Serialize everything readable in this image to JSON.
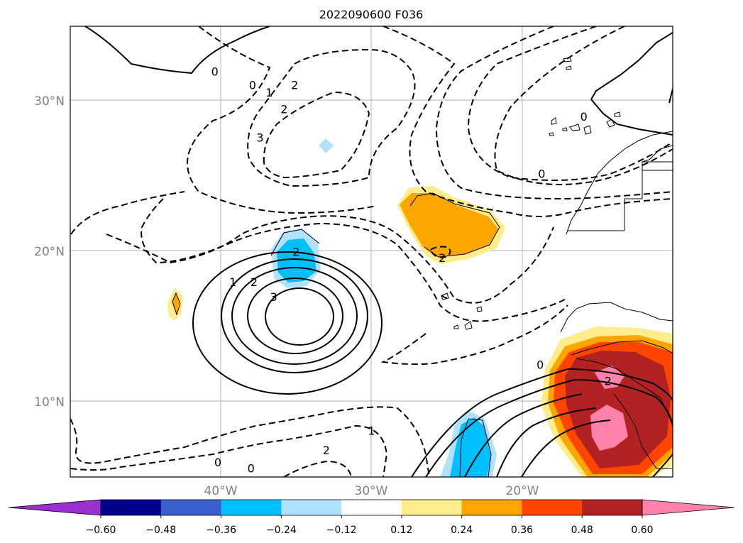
{
  "title": "2022090600 F036",
  "map": {
    "lat_range": [
      5,
      35
    ],
    "lon_range": [
      -50,
      -10
    ],
    "gridlines": true,
    "lat_ticks": [
      {
        "value": 30,
        "label": "30°N"
      },
      {
        "value": 20,
        "label": "20°N"
      },
      {
        "value": 10,
        "label": "10°N"
      }
    ],
    "lon_ticks": [
      {
        "value": -40,
        "label": "40°W"
      },
      {
        "value": -30,
        "label": "30°W"
      },
      {
        "value": -20,
        "label": "20°W"
      }
    ],
    "contour_labels": [
      {
        "text": "0",
        "lon": -40.4,
        "lat": 32.0
      },
      {
        "text": "0",
        "lon": -37.9,
        "lat": 31.1
      },
      {
        "text": "1",
        "lon": -36.8,
        "lat": 30.6
      },
      {
        "text": "2",
        "lon": -35.1,
        "lat": 31.1
      },
      {
        "text": "2",
        "lon": -35.8,
        "lat": 29.5
      },
      {
        "text": "3",
        "lon": -37.4,
        "lat": 27.6
      },
      {
        "text": "0",
        "lon": -18.7,
        "lat": 25.2
      },
      {
        "text": "0",
        "lon": -15.9,
        "lat": 29.0
      },
      {
        "text": "2",
        "lon": -35.0,
        "lat": 20.0
      },
      {
        "text": "1",
        "lon": -39.2,
        "lat": 18.0
      },
      {
        "text": "2",
        "lon": -37.8,
        "lat": 18.0
      },
      {
        "text": "3",
        "lon": -36.5,
        "lat": 17.0
      },
      {
        "text": "0",
        "lon": -38.0,
        "lat": 5.6
      },
      {
        "text": "2",
        "lon": -25.3,
        "lat": 19.6
      },
      {
        "text": "1",
        "lon": -30.0,
        "lat": 8.1
      },
      {
        "text": "0",
        "lon": -40.2,
        "lat": 6.0
      },
      {
        "text": "2",
        "lon": -33.0,
        "lat": 6.8
      },
      {
        "text": "0",
        "lon": -18.8,
        "lat": 12.5
      },
      {
        "text": "2",
        "lon": -14.3,
        "lat": 11.4
      }
    ]
  },
  "colorbar": {
    "colors": [
      "#9b30d0",
      "#00008b",
      "#3a5fcd",
      "#00bfff",
      "#b0e2ff",
      "#ffffff",
      "#ffec8b",
      "#ffa500",
      "#ff4500",
      "#b22222",
      "#ff82ab"
    ],
    "boundaries": [
      -0.6,
      -0.48,
      -0.36,
      -0.24,
      -0.12,
      0.12,
      0.24,
      0.36,
      0.48,
      0.6
    ],
    "labels": [
      "−0.60",
      "−0.48",
      "−0.36",
      "−0.24",
      "−0.12",
      "0.12",
      "0.24",
      "0.36",
      "0.48",
      "0.60"
    ]
  }
}
